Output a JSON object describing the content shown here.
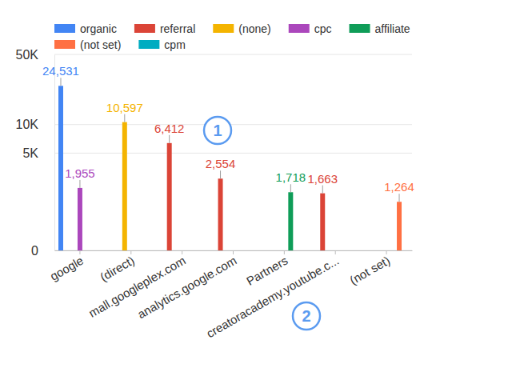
{
  "chart_data": {
    "type": "bar",
    "categories": [
      "google",
      "(direct)",
      "mall.googleplex.com",
      "analytics.google.com",
      "Partners",
      "creatoracademy.youtube.c...",
      "(not set)"
    ],
    "series": [
      {
        "name": "organic",
        "color": "#4285f4",
        "values": [
          24531,
          null,
          null,
          null,
          null,
          null,
          null
        ],
        "value_labels": [
          "24,531",
          null,
          null,
          null,
          null,
          null,
          null
        ]
      },
      {
        "name": "referral",
        "color": "#db4437",
        "values": [
          null,
          null,
          6412,
          2554,
          null,
          1663,
          null
        ],
        "value_labels": [
          null,
          null,
          "6,412",
          "2,554",
          null,
          "1,663",
          null
        ]
      },
      {
        "name": "(none)",
        "color": "#f4b400",
        "values": [
          null,
          10597,
          null,
          null,
          null,
          null,
          null
        ],
        "value_labels": [
          null,
          "10,597",
          null,
          null,
          null,
          null,
          null
        ]
      },
      {
        "name": "cpc",
        "color": "#ab47bc",
        "values": [
          1955,
          null,
          null,
          null,
          null,
          null,
          null
        ],
        "value_labels": [
          "1,955",
          null,
          null,
          null,
          null,
          null,
          null
        ]
      },
      {
        "name": "affiliate",
        "color": "#0f9d58",
        "values": [
          null,
          null,
          null,
          null,
          1718,
          null,
          null
        ],
        "value_labels": [
          null,
          null,
          null,
          null,
          "1,718",
          null,
          null
        ]
      },
      {
        "name": "(not set)",
        "color": "#ff7043",
        "values": [
          null,
          null,
          null,
          null,
          null,
          null,
          1264
        ],
        "value_labels": [
          null,
          null,
          null,
          null,
          null,
          null,
          "1,264"
        ]
      },
      {
        "name": "cpm",
        "color": "#00acc1",
        "values": [
          null,
          null,
          null,
          null,
          null,
          null,
          null
        ]
      }
    ],
    "ylim": [
      0,
      50000
    ],
    "yticks": [
      0,
      {
        "value": 5000,
        "label": "5K"
      },
      {
        "value": 10000,
        "label": "10K"
      },
      {
        "value": 50000,
        "label": "50K"
      }
    ],
    "log": "y",
    "grid": true,
    "legend": "top",
    "data_labels": true,
    "annotations": [
      {
        "text": "1"
      },
      {
        "text": "2"
      }
    ]
  }
}
